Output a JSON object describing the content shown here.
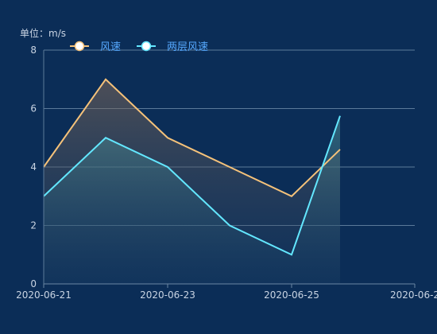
{
  "chart_data": {
    "type": "area",
    "unit_label": "单位：m/s",
    "x": [
      "2020-06-21",
      "2020-06-22",
      "2020-06-23",
      "2020-06-24",
      "2020-06-25",
      "2020-06-25 18:00"
    ],
    "x_tick_labels": [
      "2020-06-21",
      "2020-06-23",
      "2020-06-25",
      "2020-06-2"
    ],
    "ylim": [
      0,
      8
    ],
    "y_ticks": [
      "0",
      "2",
      "4",
      "6",
      "8"
    ],
    "grid": true,
    "legend_position": "top-left",
    "series": [
      {
        "name": "风速",
        "values": [
          4,
          7,
          5,
          4,
          3,
          4.6
        ],
        "color": "#f5c27a",
        "fill_top": "#9c7a5c"
      },
      {
        "name": "两层风速",
        "values": [
          3,
          5,
          4,
          2,
          1,
          5.75
        ],
        "color": "#63e7ff",
        "fill_top": "#4c8a8c"
      }
    ]
  },
  "colors": {
    "background": "#0b2d57",
    "legend_text": "#56a9ff",
    "axis_text": "#c9d4e3"
  }
}
